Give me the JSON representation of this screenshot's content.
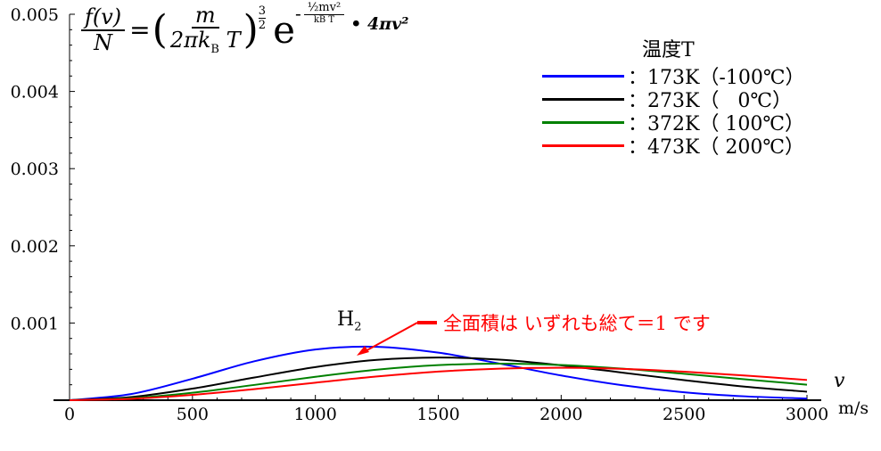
{
  "chart_data": {
    "type": "line",
    "title": "f(v)/N = (m / 2π kB T)^(3/2) e^(-(1/2)mv²/kBT) · 4πv²",
    "xlabel": "v",
    "xunit": "m/s",
    "ylabel": "",
    "xlim": [
      0,
      3000
    ],
    "ylim": [
      0,
      0.005
    ],
    "xticks": [
      "0",
      "500",
      "1000",
      "1500",
      "2000",
      "2500",
      "3000"
    ],
    "yticks": [
      "0.001",
      "0.002",
      "0.003",
      "0.004",
      "0.005"
    ],
    "legend_title": "温度T",
    "legend_placement": "top-right",
    "x": [
      0,
      250,
      500,
      750,
      1000,
      1250,
      1500,
      1750,
      2000,
      2250,
      2500,
      2750,
      3000
    ],
    "series": [
      {
        "name": "：173K（-100℃）",
        "color": "#0000ff",
        "values": [
          0,
          7.93e-05,
          0.000278,
          0.000503,
          0.000657,
          0.000692,
          0.000616,
          0.000474,
          0.00032,
          0.000193,
          0.000103,
          4.98e-05,
          2.16e-05
        ]
      },
      {
        "name": "：273K（   0℃）",
        "color": "#000000",
        "values": [
          0,
          4.07e-05,
          0.00015,
          0.000293,
          0.000429,
          0.000522,
          0.000553,
          0.000525,
          0.000452,
          0.000357,
          0.00026,
          0.000175,
          0.00011
        ]
      },
      {
        "name": "：372K（ 100℃）",
        "color": "#008000",
        "values": [
          0,
          2.57e-05,
          9.69e-05,
          0.000197,
          0.000303,
          0.000395,
          0.000454,
          0.000474,
          0.000456,
          0.000408,
          0.000342,
          0.00027,
          0.000201
        ]
      },
      {
        "name": "：473K（ 200℃）",
        "color": "#ff0000",
        "values": [
          0,
          1.8e-05,
          6.88e-05,
          0.000143,
          0.000227,
          0.000307,
          0.000371,
          0.000409,
          0.00042,
          0.000405,
          0.000369,
          0.000319,
          0.000262
        ]
      }
    ],
    "annotations": {
      "species": "H",
      "species_sub": "2",
      "note": "全面積は いずれも総て＝1 です"
    }
  },
  "formula": {
    "lhs_num": "f(v)",
    "lhs_den": "N",
    "eq": "=",
    "m": "m",
    "den": "2πk",
    "den_sub": "B",
    "den_T": "T",
    "pow_num": "3",
    "pow_den": "2",
    "e": "e",
    "exp_minus": "-",
    "exp_num": "½mv²",
    "exp_den": "kB T",
    "tail": "• 4πv²"
  }
}
